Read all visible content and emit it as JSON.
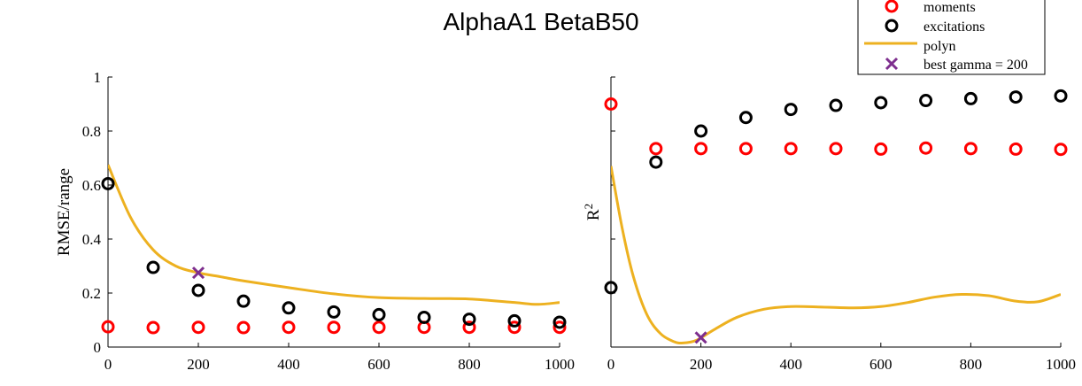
{
  "title": "AlphaA1 BetaB50",
  "legend": {
    "location": "top-right",
    "entries": [
      {
        "key": "moments",
        "label": "moments",
        "marker": "circle",
        "color": "#ff0000"
      },
      {
        "key": "excitations",
        "label": "excitations",
        "marker": "circle",
        "color": "#000000"
      },
      {
        "key": "polyn",
        "label": "polyn",
        "marker": "line",
        "color": "#edb120"
      },
      {
        "key": "best",
        "label": "best gamma = 200",
        "marker": "x",
        "color": "#7e2f8e"
      }
    ]
  },
  "chart_data": [
    {
      "type": "scatter",
      "panel": "left",
      "title": "AlphaA1 BetaB50",
      "xlabel": "",
      "ylabel": "RMSE/range",
      "xlim": [
        0,
        1000
      ],
      "ylim": [
        0,
        1
      ],
      "xticks": [
        0,
        200,
        400,
        600,
        800,
        1000
      ],
      "yticks": [
        0,
        0.2,
        0.4,
        0.6,
        0.8,
        1
      ],
      "xtick_labels": [
        "0",
        "200",
        "400",
        "600",
        "800",
        "1000"
      ],
      "ytick_labels": [
        "0",
        "0.2",
        "0.4",
        "0.6",
        "0.8",
        "1"
      ],
      "series": [
        {
          "name": "moments",
          "marker": "circle",
          "color": "#ff0000",
          "x": [
            0,
            100,
            200,
            300,
            400,
            500,
            600,
            700,
            800,
            900,
            1000
          ],
          "y": [
            0.075,
            0.072,
            0.073,
            0.072,
            0.073,
            0.073,
            0.073,
            0.073,
            0.073,
            0.073,
            0.073
          ]
        },
        {
          "name": "excitations",
          "marker": "circle",
          "color": "#000000",
          "x": [
            0,
            100,
            200,
            300,
            400,
            500,
            600,
            700,
            800,
            900,
            1000
          ],
          "y": [
            0.605,
            0.295,
            0.21,
            0.17,
            0.145,
            0.13,
            0.12,
            0.11,
            0.103,
            0.097,
            0.092
          ]
        },
        {
          "name": "polyn",
          "marker": "line",
          "color": "#edb120",
          "x": [
            0,
            50,
            100,
            150,
            200,
            250,
            300,
            400,
            500,
            600,
            700,
            800,
            900,
            950,
            1000
          ],
          "y": [
            0.675,
            0.48,
            0.36,
            0.3,
            0.275,
            0.26,
            0.245,
            0.22,
            0.197,
            0.183,
            0.18,
            0.178,
            0.165,
            0.158,
            0.165
          ]
        },
        {
          "name": "best gamma = 200",
          "marker": "x",
          "color": "#7e2f8e",
          "x": [
            200
          ],
          "y": [
            0.275
          ]
        }
      ]
    },
    {
      "type": "scatter",
      "panel": "right",
      "xlabel": "",
      "ylabel": "R",
      "ylabel_superscript": "2",
      "xlim": [
        0,
        1000
      ],
      "ylim": [
        0,
        1
      ],
      "ytick_labels_shown": false,
      "xticks": [
        0,
        200,
        400,
        600,
        800,
        1000
      ],
      "xtick_labels": [
        "0",
        "200",
        "400",
        "600",
        "800",
        "1000"
      ],
      "yticks": [
        0,
        0.2,
        0.4,
        0.6,
        0.8,
        1
      ],
      "series": [
        {
          "name": "moments",
          "marker": "circle",
          "color": "#ff0000",
          "x": [
            0,
            100,
            200,
            300,
            400,
            500,
            600,
            700,
            800,
            900,
            1000
          ],
          "y": [
            0.9,
            0.735,
            0.735,
            0.735,
            0.735,
            0.735,
            0.733,
            0.737,
            0.735,
            0.733,
            0.732
          ]
        },
        {
          "name": "excitations",
          "marker": "circle",
          "color": "#000000",
          "x": [
            0,
            100,
            200,
            300,
            400,
            500,
            600,
            700,
            800,
            900,
            1000
          ],
          "y": [
            0.22,
            0.685,
            0.8,
            0.85,
            0.88,
            0.895,
            0.905,
            0.913,
            0.92,
            0.926,
            0.93
          ]
        },
        {
          "name": "polyn",
          "marker": "line",
          "color": "#edb120",
          "x": [
            0,
            25,
            50,
            80,
            110,
            140,
            160,
            190,
            230,
            280,
            340,
            400,
            470,
            540,
            600,
            660,
            720,
            780,
            840,
            900,
            950,
            1000
          ],
          "y": [
            0.67,
            0.44,
            0.26,
            0.12,
            0.05,
            0.02,
            0.015,
            0.025,
            0.065,
            0.11,
            0.14,
            0.15,
            0.148,
            0.145,
            0.15,
            0.165,
            0.185,
            0.195,
            0.19,
            0.17,
            0.168,
            0.195
          ]
        },
        {
          "name": "best gamma = 200",
          "marker": "x",
          "color": "#7e2f8e",
          "x": [
            200
          ],
          "y": [
            0.035
          ]
        }
      ]
    }
  ]
}
